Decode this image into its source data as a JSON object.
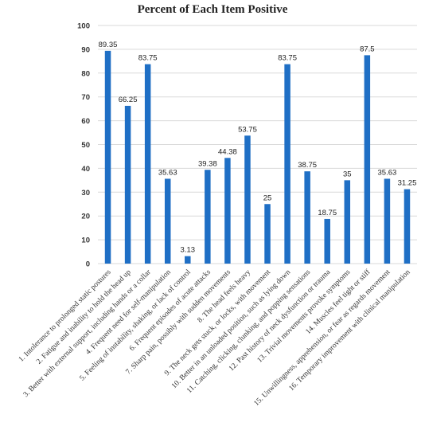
{
  "chart_data": {
    "type": "bar",
    "title": "Percent of Each Item Positive",
    "xlabel": "",
    "ylabel": "",
    "ylim": [
      0,
      100
    ],
    "yticks": [
      0,
      10,
      20,
      30,
      40,
      50,
      60,
      70,
      80,
      90,
      100
    ],
    "grid": true,
    "bar_color": "#1f6fc5",
    "categories": [
      "1. Intolerance to prolonged static postures",
      "2. Fatigue and inability to hold the head up",
      "3. Better with external support, including hands or a collar",
      "4. Frequent need for self-manipulation",
      "5. Feeling of instability, shaking, or lack of control",
      "6. Frequent episodes of acute attacks",
      "7. Sharp pain, possibly with sudden movements",
      "8. The head feels heavy",
      "9. The neck gets stuck, or locks, with movement",
      "10. Better in an unloaded position, such as lying down",
      "11. Catching, clicking, clunking, and popping sensations",
      "12. Past history of neck dysfunction or trauma",
      "13. Trivial movements provoke symptoms",
      "14. Muscles feel tight or stiff",
      "15. Unwillingness, apprehension, or fear as regards movement",
      "16. Temporary improvement with clinical manipulation"
    ],
    "values": [
      89.35,
      66.25,
      83.75,
      35.63,
      3.13,
      39.38,
      44.38,
      53.75,
      25,
      83.75,
      38.75,
      18.75,
      35,
      87.5,
      35.63,
      31.25
    ],
    "value_labels": [
      "89.35",
      "66.25",
      "83.75",
      "35.63",
      "3.13",
      "39.38",
      "44.38",
      "53.75",
      "25",
      "83.75",
      "38.75",
      "18.75",
      "35",
      "87.5",
      "35.63",
      "31.25"
    ]
  }
}
